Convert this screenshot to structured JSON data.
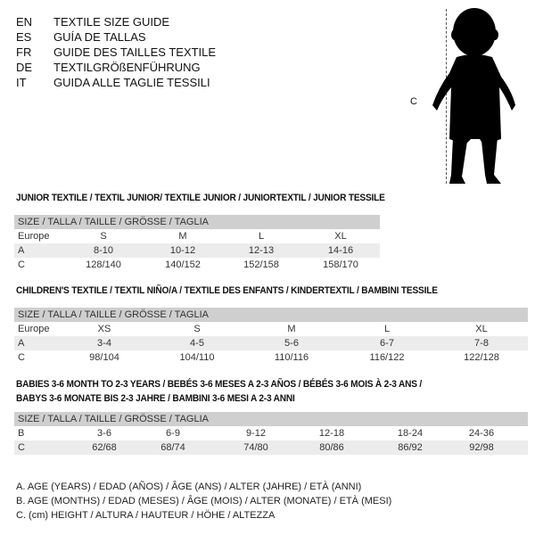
{
  "languages": [
    {
      "code": "EN",
      "text": "TEXTILE SIZE GUIDE"
    },
    {
      "code": "ES",
      "text": "GUÍA DE TALLAS"
    },
    {
      "code": "FR",
      "text": "GUIDE DES TAILLES TEXTILE"
    },
    {
      "code": "DE",
      "text": "TEXTILGRÖßENFÜHRUNG"
    },
    {
      "code": "IT",
      "text": "GUIDA ALLE TAGLIE TESSILI"
    }
  ],
  "figure": {
    "label": "C"
  },
  "junior": {
    "title": "JUNIOR TEXTILE / TEXTIL JUNIOR/ TEXTILE JUNIOR / JUNIORTEXTIL / JUNIOR TESSILE",
    "header": "SIZE / TALLA / TAILLE / GRÖSSE / TAGLIA",
    "rows": [
      {
        "label": "Europe",
        "cells": [
          "S",
          "M",
          "L",
          "XL"
        ]
      },
      {
        "label": "A",
        "cells": [
          "8-10",
          "10-12",
          "12-13",
          "14-16"
        ]
      },
      {
        "label": "C",
        "cells": [
          "128/140",
          "140/152",
          "152/158",
          "158/170"
        ]
      }
    ]
  },
  "children": {
    "title": "CHILDREN'S TEXTILE / TEXTIL NIÑO/A / TEXTILE DES ENFANTS / KINDERTEXTIL / BAMBINI TESSILE",
    "header": "SIZE / TALLA / TAILLE / GRÖSSE / TAGLIA",
    "rows": [
      {
        "label": "Europe",
        "cells": [
          "XS",
          "S",
          "M",
          "L",
          "XL"
        ]
      },
      {
        "label": "A",
        "cells": [
          "3-4",
          "4-5",
          "5-6",
          "6-7",
          "7-8"
        ]
      },
      {
        "label": "C",
        "cells": [
          "98/104",
          "104/110",
          "110/116",
          "116/122",
          "122/128"
        ]
      }
    ]
  },
  "babies": {
    "title1": "BABIES 3-6 MONTH TO 2-3 YEARS / BEBÉS 3-6 MESES A 2-3 AÑOS / BÉBÉS 3-6 MOIS À 2-3 ANS /",
    "title2": "BABYS 3-6 MONATE BIS 2-3 JAHRE / BAMBINI 3-6 MESI A 2-3 ANNI",
    "header": "SIZE / TALLA / TAILLE / GRÖSSE / TAGLIA",
    "rows": [
      {
        "label": "B",
        "cells": [
          "3-6",
          "6-9",
          "9-12",
          "12-18",
          "18-24",
          "24-36"
        ]
      },
      {
        "label": "C",
        "cells": [
          "62/68",
          "68/74",
          "74/80",
          "80/86",
          "86/92",
          "92/98"
        ]
      }
    ]
  },
  "legend": [
    "A. AGE (YEARS) / EDAD (AÑOS) / ÂGE (ANS) / ALTER (JAHRE) / ETÀ (ANNI)",
    "B. AGE (MONTHS) / EDAD (MESES) / ÂGE (MOIS) / ALTER (MONATE) / ETÀ (MESI)",
    "C. (cm) HEIGHT / ALTURA / HAUTEUR / HÖHE / ALTEZZA"
  ]
}
